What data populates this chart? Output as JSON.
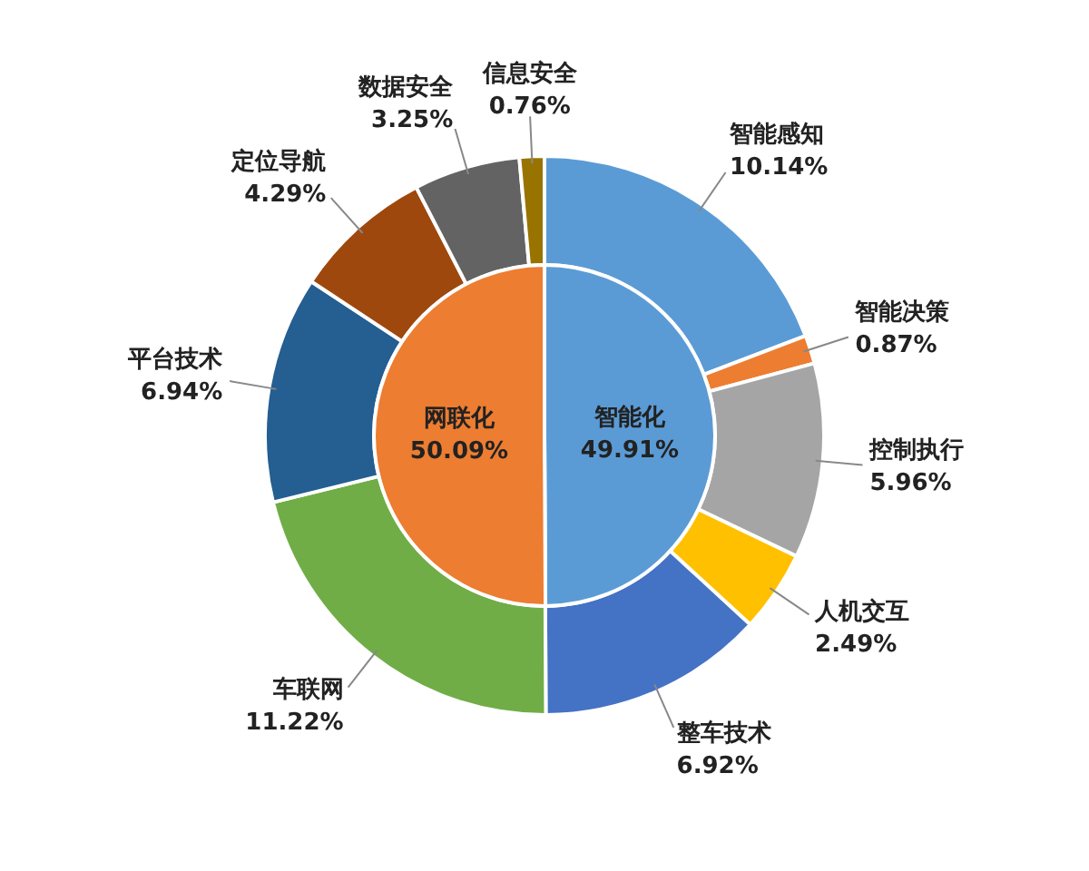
{
  "chart_data": [
    {
      "type": "donut",
      "legend": false,
      "categories": [
        "智能感知",
        "智能决策",
        "控制执行",
        "人机交互",
        "整车技术",
        "车联网",
        "平台技术",
        "定位导航",
        "数据安全",
        "信息安全"
      ],
      "values": [
        10.14,
        0.87,
        5.96,
        2.49,
        6.92,
        11.22,
        6.94,
        4.29,
        3.25,
        0.76
      ],
      "value_labels": [
        "10.14%",
        "0.87%",
        "5.96%",
        "2.49%",
        "6.92%",
        "11.22%",
        "6.94%",
        "4.29%",
        "3.25%",
        "0.76%"
      ],
      "colors": [
        "#5b9bd5",
        "#ed7d31",
        "#a5a5a5",
        "#ffc000",
        "#4472c4",
        "#70ad47",
        "#255e91",
        "#9e480e",
        "#636363",
        "#997300"
      ]
    },
    {
      "type": "pie",
      "legend": false,
      "categories": [
        "智能化",
        "网联化"
      ],
      "values": [
        49.91,
        50.09
      ],
      "value_labels": [
        "49.91%",
        "50.09%"
      ],
      "colors": [
        "#5b9bd5",
        "#ed7d31"
      ]
    }
  ]
}
